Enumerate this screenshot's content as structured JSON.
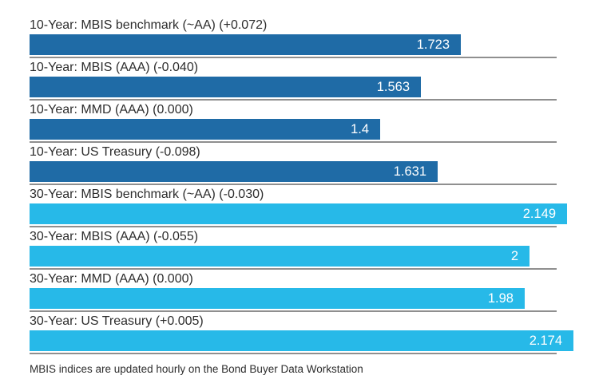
{
  "chart_data": {
    "type": "bar",
    "orientation": "horizontal",
    "title": "",
    "xlabel": "",
    "ylabel": "",
    "xlim": [
      0,
      2.174
    ],
    "grid": false,
    "legend": "none",
    "categories": [
      "10-Year: MBIS benchmark (~AA) (+0.072)",
      "10-Year: MBIS (AAA) (-0.040)",
      "10-Year: MMD (AAA) (0.000)",
      "10-Year: US Treasury (-0.098)",
      "30-Year: MBIS benchmark (~AA) (-0.030)",
      "30-Year: MBIS (AAA) (-0.055)",
      "30-Year: MMD (AAA) (0.000)",
      "30-Year: US Treasury (+0.005)"
    ],
    "values": [
      1.723,
      1.563,
      1.4,
      1.631,
      2.149,
      2,
      1.98,
      2.174
    ],
    "rows": [
      {
        "label": "10-Year: MBIS benchmark (~AA) (+0.072)",
        "value": 1.723,
        "display": "1.723",
        "group": "10-Year"
      },
      {
        "label": "10-Year: MBIS (AAA) (-0.040)",
        "value": 1.563,
        "display": "1.563",
        "group": "10-Year"
      },
      {
        "label": "10-Year: MMD (AAA) (0.000)",
        "value": 1.4,
        "display": "1.4",
        "group": "10-Year"
      },
      {
        "label": "10-Year: US Treasury (-0.098)",
        "value": 1.631,
        "display": "1.631",
        "group": "10-Year"
      },
      {
        "label": "30-Year: MBIS benchmark (~AA) (-0.030)",
        "value": 2.149,
        "display": "2.149",
        "group": "30-Year"
      },
      {
        "label": "30-Year: MBIS (AAA) (-0.055)",
        "value": 2,
        "display": "2",
        "group": "30-Year"
      },
      {
        "label": "30-Year: MMD (AAA) (0.000)",
        "value": 1.98,
        "display": "1.98",
        "group": "30-Year"
      },
      {
        "label": "30-Year: US Treasury (+0.005)",
        "value": 2.174,
        "display": "2.174",
        "group": "30-Year"
      }
    ],
    "groups": {
      "10-Year": {
        "color": "#1f6ba6"
      },
      "30-Year": {
        "color": "#27b9e8"
      }
    },
    "footnote": "MBIS indices are updated hourly on the Bond Buyer Data Workstation"
  },
  "colors": {
    "ten_year_bar": "#1f6ba6",
    "thirty_year_bar": "#27b9e8",
    "separator": "#8f8f8f",
    "label_text": "#2d2d2d",
    "value_text": "#ffffff",
    "background": "#ffffff"
  }
}
